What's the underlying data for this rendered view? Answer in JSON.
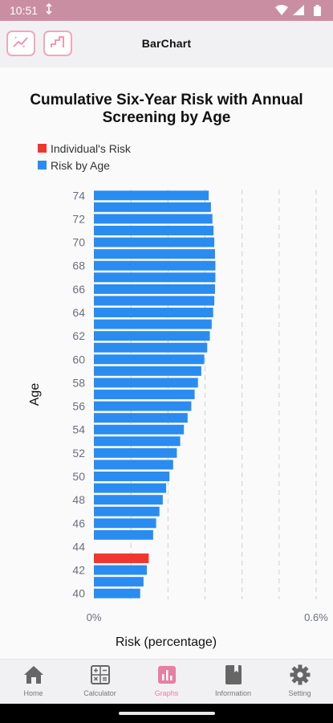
{
  "status_bar": {
    "time": "10:51"
  },
  "app_bar": {
    "title": "BarChart"
  },
  "colors": {
    "individual": "#f0362f",
    "by_age": "#2a8cf0",
    "accent": "#e87ea0",
    "status_bg": "#c98ea2"
  },
  "chart_data": {
    "type": "bar",
    "orientation": "horizontal",
    "title": "Cumulative Six-Year Risk with Annual Screening by Age",
    "xlabel": "Risk (percentage)",
    "ylabel": "Age",
    "xlim": [
      0,
      0.6
    ],
    "x_tick_labels": [
      "0%",
      "0.6%"
    ],
    "categories": [
      40,
      41,
      42,
      43,
      44,
      45,
      46,
      47,
      48,
      49,
      50,
      51,
      52,
      53,
      54,
      55,
      56,
      57,
      58,
      59,
      60,
      61,
      62,
      63,
      64,
      65,
      66,
      67,
      68,
      69,
      70,
      71,
      72,
      73,
      74
    ],
    "y_tick_labels": [
      "40",
      "42",
      "44",
      "46",
      "48",
      "50",
      "52",
      "54",
      "56",
      "58",
      "60",
      "62",
      "64",
      "66",
      "68",
      "70",
      "72",
      "74"
    ],
    "series": [
      {
        "name": "Individual's Risk",
        "color": "#f0362f",
        "values": [
          0,
          0,
          0,
          0.148,
          0,
          0,
          0,
          0,
          0,
          0,
          0,
          0,
          0,
          0,
          0,
          0,
          0,
          0,
          0,
          0,
          0,
          0,
          0,
          0,
          0,
          0,
          0,
          0,
          0,
          0,
          0,
          0,
          0,
          0,
          0
        ]
      },
      {
        "name": "Risk by Age",
        "color": "#2a8cf0",
        "values": [
          0.125,
          0.134,
          0.143,
          0,
          0,
          0.16,
          0.168,
          0.177,
          0.186,
          0.195,
          0.204,
          0.214,
          0.224,
          0.233,
          0.243,
          0.253,
          0.263,
          0.272,
          0.281,
          0.29,
          0.298,
          0.306,
          0.313,
          0.318,
          0.322,
          0.325,
          0.327,
          0.328,
          0.328,
          0.327,
          0.325,
          0.323,
          0.32,
          0.316,
          0.31
        ]
      }
    ],
    "grid": true,
    "legend_position": "top-left"
  },
  "bottom_nav": {
    "items": [
      {
        "label": "Home",
        "icon": "home-icon"
      },
      {
        "label": "Calculator",
        "icon": "calculator-icon"
      },
      {
        "label": "Graphs",
        "icon": "bar-chart-icon"
      },
      {
        "label": "Information",
        "icon": "book-icon"
      },
      {
        "label": "Setting",
        "icon": "gear-icon"
      }
    ],
    "active_index": 2
  }
}
